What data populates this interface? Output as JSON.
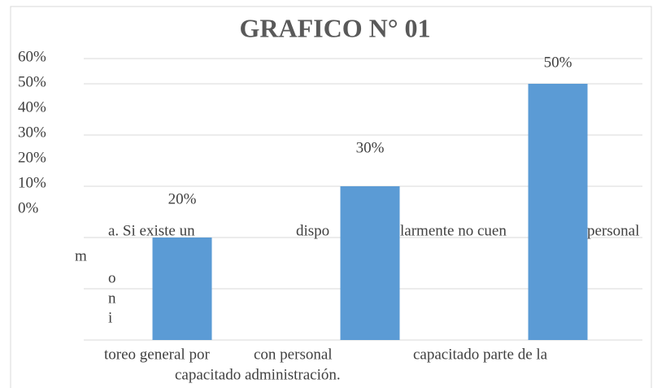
{
  "chart_data": {
    "type": "bar",
    "title": "GRAFICO N° 01",
    "values": [
      20,
      30,
      50
    ],
    "value_labels": [
      "20%",
      "30%",
      "50%"
    ],
    "color": "#5b9bd5",
    "ylim": [
      0,
      60
    ],
    "yticks": [
      {
        "value": 0,
        "label": "0%"
      },
      {
        "value": 10,
        "label": "10%"
      },
      {
        "value": 20,
        "label": "20%"
      },
      {
        "value": 30,
        "label": "30%"
      },
      {
        "value": 40,
        "label": "40%"
      },
      {
        "value": 50,
        "label": "50%"
      },
      {
        "value": 60,
        "label": "60%"
      }
    ],
    "grid": true,
    "label_fragments": [
      "a. Si existe un",
      "m",
      "o",
      "n",
      "i",
      "toreo general por",
      "capacitado administración.",
      "dispo",
      "larmente no cuen",
      "personal",
      "con personal",
      "capacitado parte de la"
    ]
  }
}
